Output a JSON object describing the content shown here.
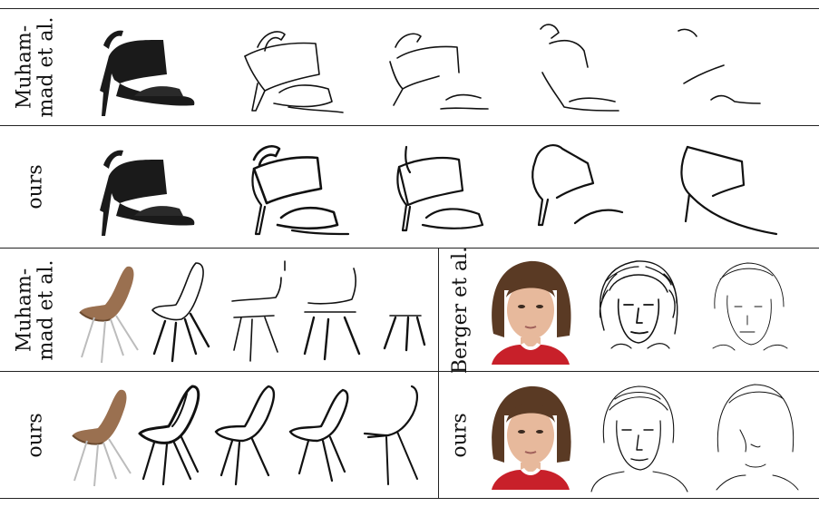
{
  "rows": [
    {
      "label": "Muham-\nmad et al."
    },
    {
      "label": "ours"
    },
    {
      "label": "Muham-\nmad et al."
    },
    {
      "label": "ours"
    }
  ],
  "right_rows": [
    {
      "label": "Berger et al."
    },
    {
      "label": "ours"
    }
  ],
  "colors": {
    "leather": "#1a1a1a",
    "chair_shell": "#9a7050",
    "shirt": "#c8202a",
    "hair": "#5a3a24",
    "skin": "#e7b99c"
  }
}
